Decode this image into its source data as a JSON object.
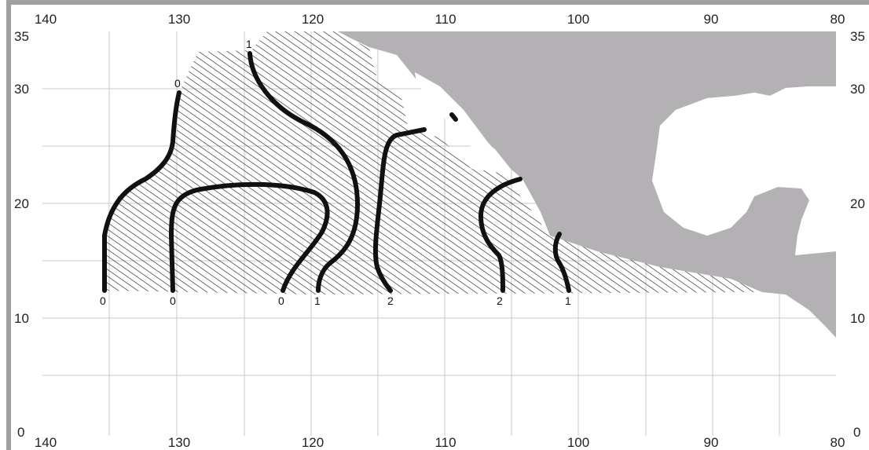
{
  "map": {
    "lon_ticks_top": [
      "140",
      "130",
      "120",
      "110",
      "100",
      "90",
      "80"
    ],
    "lon_ticks_bottom": [
      "140",
      "130",
      "120",
      "110",
      "100",
      "90",
      "80"
    ],
    "lat_ticks_left": [
      "35",
      "30",
      "20",
      "10",
      "0"
    ],
    "lat_ticks_right": [
      "35",
      "30",
      "20",
      "10",
      "0"
    ],
    "land_color": "#b3b1b3",
    "hatch_color": "#222222",
    "contour_color": "#111111",
    "contours": [
      {
        "label_top": "0",
        "label_bottom": "0"
      },
      {
        "label_top": "1",
        "label_bottom": ""
      },
      {
        "label_top": "",
        "label_bottom": "0"
      },
      {
        "label_top": "",
        "label_bottom": "0"
      },
      {
        "label_top": "",
        "label_bottom": "1"
      },
      {
        "label_top": "",
        "label_bottom": "2"
      },
      {
        "label_top": "",
        "label_bottom": "2"
      },
      {
        "label_top": "",
        "label_bottom": "1"
      }
    ]
  }
}
